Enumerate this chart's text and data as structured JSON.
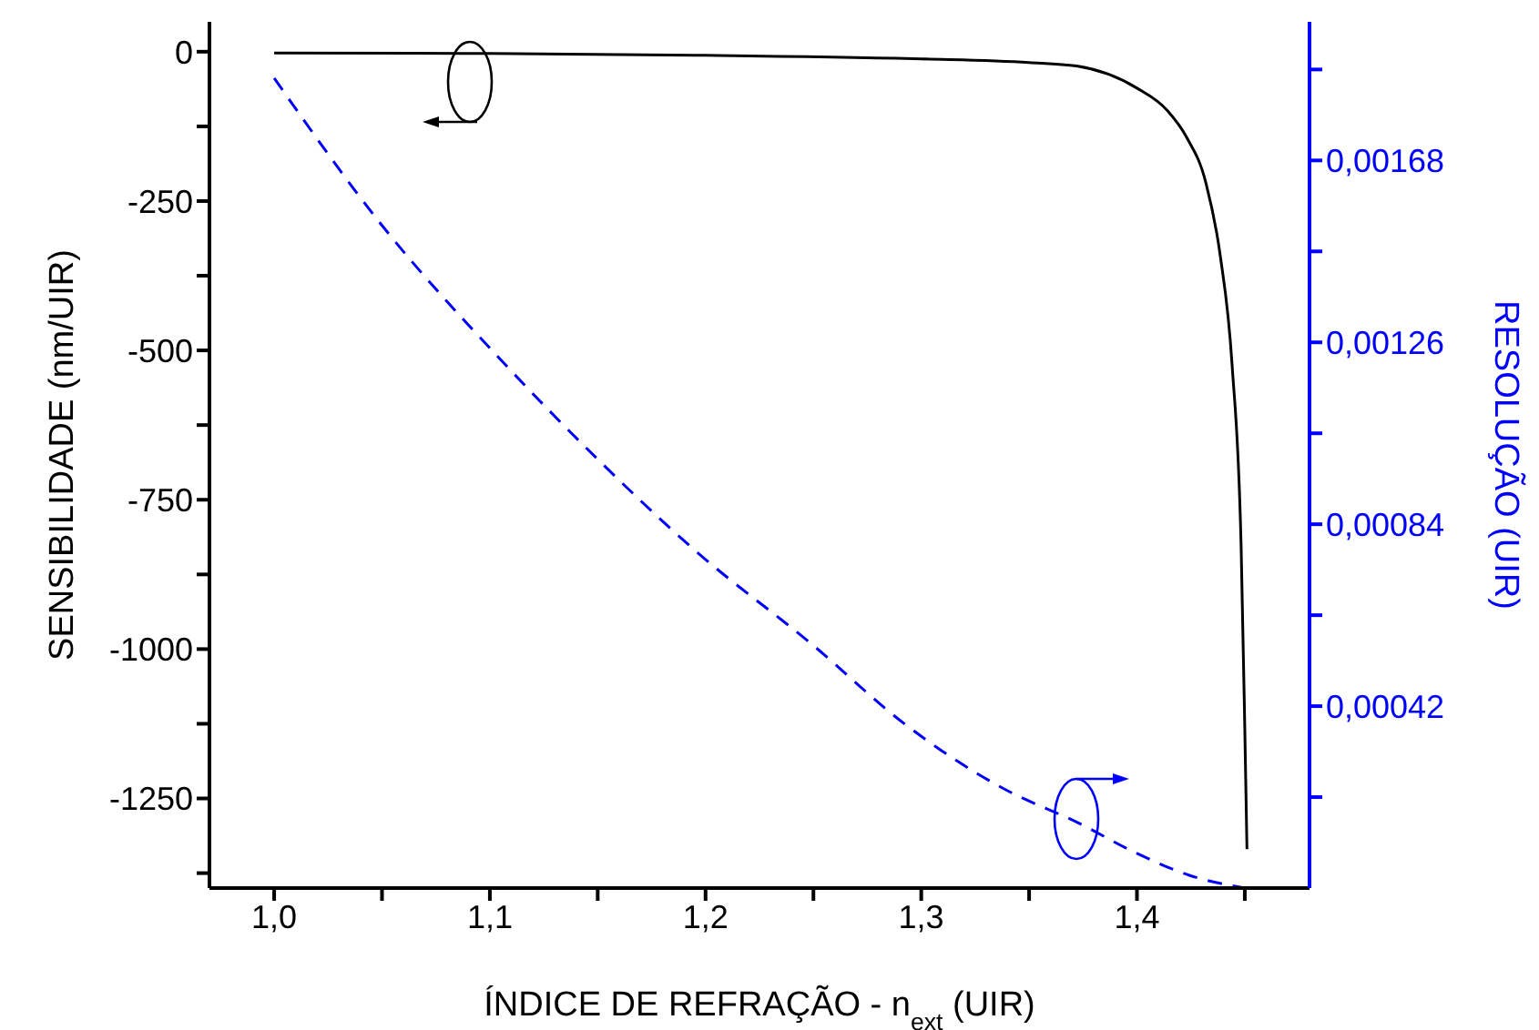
{
  "chart_data": {
    "type": "line",
    "xlabel": "ÍNDICE DE REFRAÇÃO - n$_{ext}$ (UIR)",
    "ylabel": "SENSIBILIDADE (nm/UIR)",
    "y2label": "RESOLUÇÃO (UIR)",
    "xlim": [
      0.97,
      1.48
    ],
    "xticks": [
      {
        "value": 1.0,
        "label": "1,0"
      },
      {
        "value": 1.05,
        "label": null
      },
      {
        "value": 1.1,
        "label": "1,1"
      },
      {
        "value": 1.15,
        "label": null
      },
      {
        "value": 1.2,
        "label": "1,2"
      },
      {
        "value": 1.25,
        "label": null
      },
      {
        "value": 1.3,
        "label": "1,3"
      },
      {
        "value": 1.35,
        "label": null
      },
      {
        "value": 1.4,
        "label": "1,4"
      },
      {
        "value": 1.45,
        "label": null
      }
    ],
    "ylim": [
      -1400,
      50
    ],
    "yticks": [
      0,
      {
        "value": -125,
        "label": null
      },
      -250,
      {
        "value": -375,
        "label": null
      },
      -500,
      {
        "value": -625,
        "label": null
      },
      -750,
      {
        "value": -875,
        "label": null
      },
      -1000,
      {
        "value": -1125,
        "label": null
      },
      -1250,
      {
        "value": -1375,
        "label": null
      }
    ],
    "y2lim": [
      0,
      0.002
    ],
    "y2ticks": [
      {
        "value": 0.00021,
        "label": null
      },
      {
        "value": 0.00042,
        "label": "0,00042"
      },
      {
        "value": 0.00063,
        "label": null
      },
      {
        "value": 0.00084,
        "label": "0,00084"
      },
      {
        "value": 0.00105,
        "label": null
      },
      {
        "value": 0.00126,
        "label": "0,00126"
      },
      {
        "value": 0.00147,
        "label": null
      },
      {
        "value": 0.00168,
        "label": "0,00168"
      },
      {
        "value": 0.00189,
        "label": null
      }
    ],
    "grid": false,
    "marker": "none",
    "series": [
      {
        "color": "#000000",
        "line_style": "solid",
        "x": [
          1.0,
          1.1,
          1.2,
          1.3,
          1.35,
          1.372,
          1.4,
          1.414,
          1.423,
          1.432,
          1.4386,
          1.4441,
          1.4483,
          1.45,
          1.451
        ],
        "values": [
          -2,
          -3,
          -6,
          -12,
          -18,
          -24,
          -61,
          -98,
          -143,
          -220,
          -341,
          -524,
          -829,
          -1134,
          -1335
        ]
      },
      {
        "color": "#0000ff",
        "line_style": "dashed",
        "axis": "y2",
        "x": [
          1.0,
          1.05,
          1.105,
          1.15,
          1.195,
          1.25,
          1.292,
          1.338,
          1.373,
          1.4,
          1.424,
          1.45
        ],
        "values": [
          0.00187,
          0.00153,
          0.00122,
          0.00099,
          0.00078,
          0.00056,
          0.00038,
          0.00023,
          0.00015,
          8e-05,
          3e-05,
          0.0
        ]
      }
    ]
  }
}
